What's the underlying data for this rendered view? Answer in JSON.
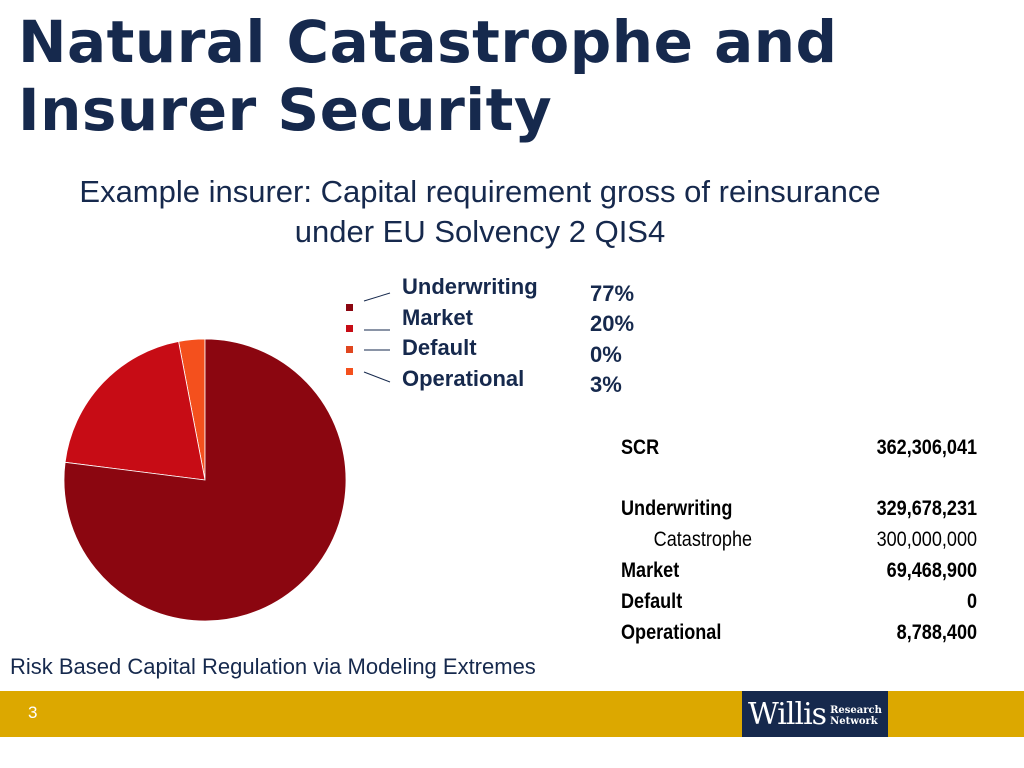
{
  "slide": {
    "title_line1": "Natural Catastrophe and",
    "title_line2": "Insurer Security",
    "subtitle_line1": "Example insurer: Capital requirement gross of reinsurance",
    "subtitle_line2": "under EU Solvency 2 QIS4",
    "footer_text": "Risk Based Capital Regulation via Modeling Extremes",
    "page_number": "3"
  },
  "logo": {
    "text": "Willis",
    "sub_line1": "Research",
    "sub_line2": "Network"
  },
  "chart_data": {
    "type": "pie",
    "categories": [
      "Underwriting",
      "Market",
      "Default",
      "Operational"
    ],
    "values": [
      77,
      20,
      0,
      3
    ],
    "value_labels": [
      "77%",
      "20%",
      "0%",
      "3%"
    ],
    "colors": [
      "#8b0610",
      "#c70c15",
      "#e0461f",
      "#f4501d"
    ],
    "legend_position": "right"
  },
  "table": {
    "rows": [
      {
        "label": "SCR",
        "value": "362,306,041",
        "bold": true
      },
      {
        "label": "Underwriting",
        "value": "329,678,231",
        "bold": true
      },
      {
        "label": "Catastrophe",
        "value": "300,000,000",
        "bold": false
      },
      {
        "label": "Market",
        "value": "69,468,900",
        "bold": true
      },
      {
        "label": "Default",
        "value": "0",
        "bold": true
      },
      {
        "label": "Operational",
        "value": "8,788,400",
        "bold": true
      }
    ]
  },
  "colors": {
    "title": "#16294d",
    "footer_bar": "#dca800",
    "logo_bg": "#16294d"
  }
}
